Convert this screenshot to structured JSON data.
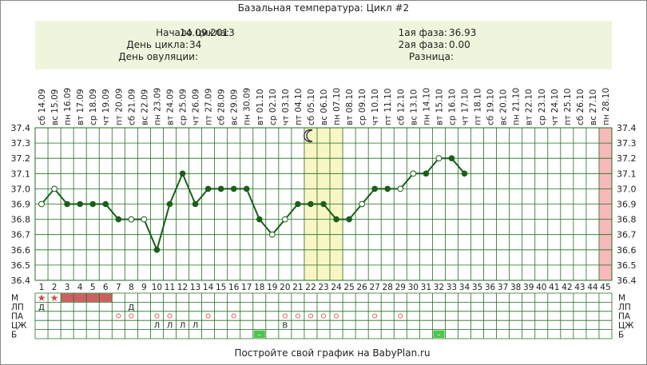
{
  "title": "Базальная температура: Цикл #2",
  "info": {
    "cycle_start_label": "Начало цикла:",
    "cycle_start_value": "14.09.2013",
    "cycle_day_label": "День цикла:",
    "cycle_day_value": "34",
    "ovulation_day_label": "День овуляции:",
    "ovulation_day_value": "",
    "phase1_label": "1ая фаза:",
    "phase1_value": "36.93",
    "phase2_label": "2ая фаза:",
    "phase2_value": "0.00",
    "difference_label": "Разница:",
    "difference_value": ""
  },
  "footer": "Постройте свой график на BabyPlan.ru",
  "row_labels": [
    "М",
    "ЛП",
    "ПА",
    "ЦЖ",
    "Б"
  ],
  "colors": {
    "grid": "#1f6f1f",
    "line": "#1a5e1a",
    "panel": "#eef5dc",
    "ovulation_band": "#f8f6c4",
    "next_cycle_band": "#f7b9b9",
    "menstruation": "#cc6060",
    "star": "#cc4a4a",
    "pa_circle": "#dd6a6a",
    "b_marker": "#4cc64c"
  },
  "chart_data": {
    "type": "line",
    "dates": [
      "14.09",
      "15.09",
      "16.09",
      "17.09",
      "18.09",
      "19.09",
      "20.09",
      "21.09",
      "22.09",
      "23.09",
      "24.09",
      "25.09",
      "26.09",
      "27.09",
      "28.09",
      "29.09",
      "30.09",
      "01.10",
      "02.10",
      "03.10",
      "04.10",
      "05.10",
      "06.10",
      "07.10",
      "08.10",
      "09.10",
      "10.10",
      "11.10",
      "12.10",
      "13.10",
      "14.10",
      "15.10",
      "16.10",
      "17.10",
      "18.10",
      "19.10",
      "20.10",
      "21.10",
      "22.10",
      "23.10",
      "24.10",
      "25.10",
      "26.10",
      "27.10",
      "28.10"
    ],
    "weekdays": [
      "сб",
      "вс",
      "пн",
      "вт",
      "ср",
      "чт",
      "пт",
      "сб",
      "вс",
      "пн",
      "вт",
      "ср",
      "чт",
      "пт",
      "сб",
      "вс",
      "пн",
      "вт",
      "ср",
      "чт",
      "пт",
      "сб",
      "вс",
      "пн",
      "вт",
      "ср",
      "чт",
      "пт",
      "сб",
      "вс",
      "пн",
      "вт",
      "ср",
      "чт",
      "пт",
      "сб",
      "вс",
      "пн",
      "вт",
      "ср",
      "чт",
      "пт",
      "сб",
      "вс",
      "пн"
    ],
    "days": [
      1,
      2,
      3,
      4,
      5,
      6,
      7,
      8,
      9,
      10,
      11,
      12,
      13,
      14,
      15,
      16,
      17,
      18,
      19,
      20,
      21,
      22,
      23,
      24,
      25,
      26,
      27,
      28,
      29,
      30,
      31,
      32,
      33,
      34,
      35,
      36,
      37,
      38,
      39,
      40,
      41,
      42,
      43,
      44,
      45
    ],
    "temperatures": [
      36.9,
      37.0,
      36.9,
      36.9,
      36.9,
      36.9,
      36.8,
      36.8,
      36.8,
      36.6,
      36.9,
      37.1,
      36.9,
      37.0,
      37.0,
      37.0,
      37.0,
      36.8,
      36.7,
      36.8,
      36.9,
      36.9,
      36.9,
      36.8,
      36.8,
      36.9,
      37.0,
      37.0,
      37.0,
      37.1,
      37.1,
      37.2,
      37.2,
      37.1
    ],
    "marker_style": [
      "open",
      "open",
      "filled",
      "filled",
      "filled",
      "filled",
      "filled",
      "open",
      "open",
      "filled",
      "filled",
      "filled",
      "filled",
      "filled",
      "filled",
      "filled",
      "filled",
      "filled",
      "open",
      "open",
      "filled",
      "filled",
      "filled",
      "filled",
      "filled",
      "open",
      "filled",
      "filled",
      "open",
      "open",
      "filled",
      "open",
      "filled",
      "filled"
    ],
    "ylim": [
      36.4,
      37.4
    ],
    "yticks": [
      "36.4",
      "36.5",
      "36.6",
      "36.7",
      "36.8",
      "36.9",
      "37.0",
      "37.1",
      "37.2",
      "37.3",
      "37.4"
    ],
    "ovulation_band_days": [
      22,
      24
    ],
    "moon_day": 22,
    "next_cycle_day": 45,
    "grid": true,
    "rows": {
      "menstruation_stars_days": [
        1,
        2
      ],
      "menstruation_bar_days": [
        3,
        6
      ],
      "lp_marks": [
        {
          "day": 1,
          "mark": "Д"
        },
        {
          "day": 8,
          "mark": "Д"
        }
      ],
      "pa_circle_days": [
        7,
        8,
        10,
        11,
        14,
        16,
        20,
        21,
        22,
        23,
        24,
        27,
        29
      ],
      "czh_marks": [
        {
          "day": 10,
          "mark": "Л"
        },
        {
          "day": 11,
          "mark": "Л"
        },
        {
          "day": 12,
          "mark": "Л"
        },
        {
          "day": 13,
          "mark": "Л"
        },
        {
          "day": 20,
          "mark": "В"
        }
      ],
      "b_marker_days": [
        18,
        32
      ],
      "b_marker_text": "–"
    }
  }
}
